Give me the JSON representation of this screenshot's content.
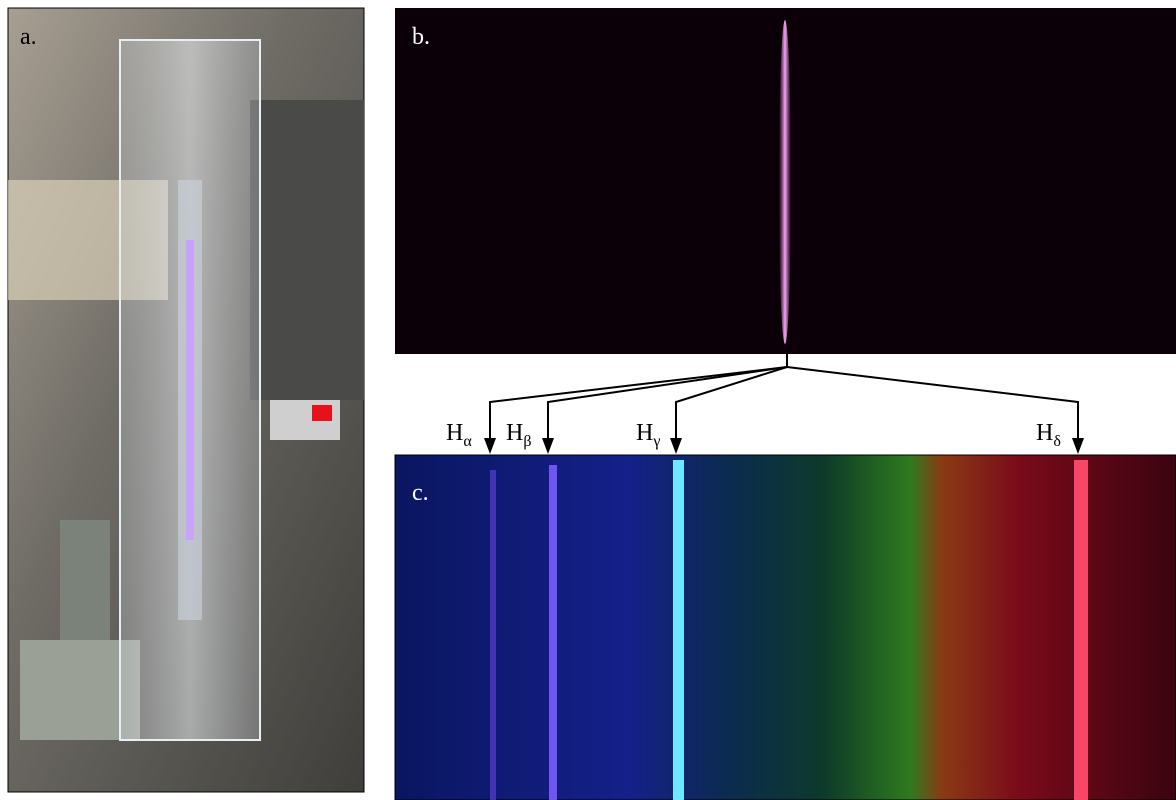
{
  "panels": {
    "a": "a.",
    "b": "b.",
    "c": "c."
  },
  "lines": [
    {
      "base": "H",
      "sub": "α"
    },
    {
      "base": "H",
      "sub": "β"
    },
    {
      "base": "H",
      "sub": "γ"
    },
    {
      "base": "H",
      "sub": "δ"
    }
  ]
}
